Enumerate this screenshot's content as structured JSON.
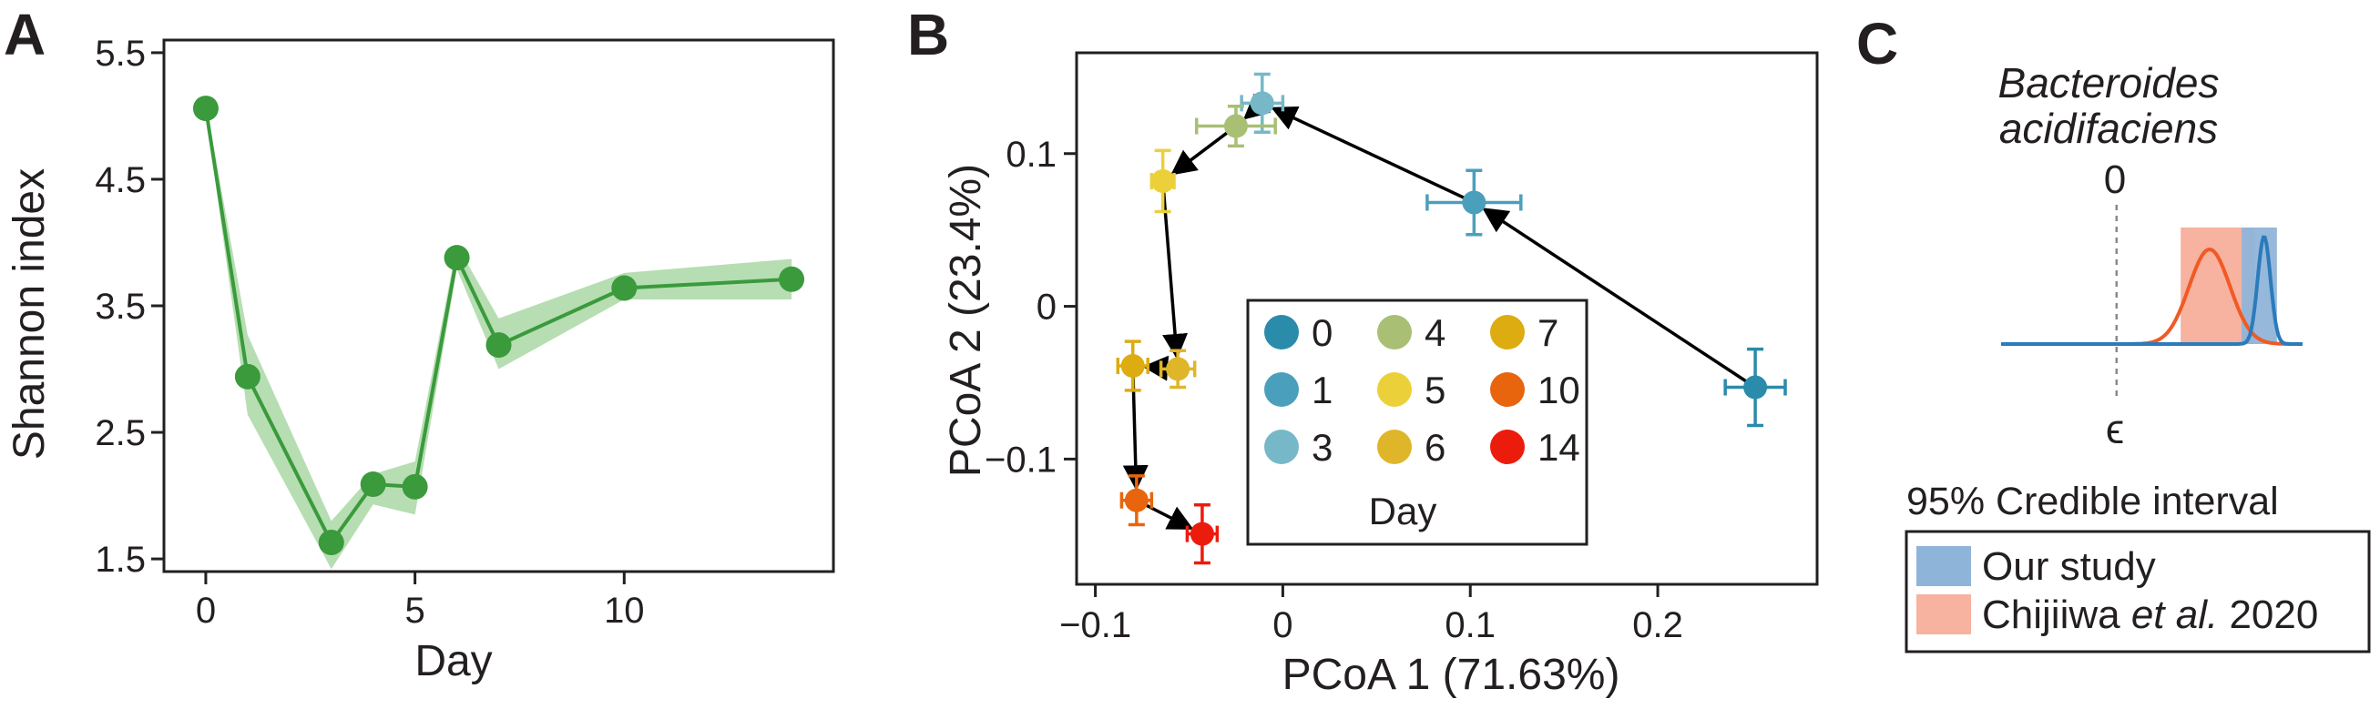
{
  "panels": {
    "a": "A",
    "b": "B",
    "c": "C"
  },
  "colors": {
    "shannon_line": "#3a9a3c",
    "shannon_band": "#a9d8a4",
    "arrow": "#000000",
    "prior_line": "#f15a24",
    "prior_band": "#f7b2a0",
    "study_line": "#2b7bba",
    "study_band": "#8fb4d9",
    "day_colors": {
      "0": "#2b8bab",
      "1": "#4aa0bc",
      "3": "#76b8c8",
      "4": "#a8bf74",
      "5": "#ecd03a",
      "6": "#dfb62a",
      "7": "#dcac10",
      "10": "#e8650e",
      "14": "#ec1c0c"
    }
  },
  "chart_data": [
    {
      "type": "line",
      "panel": "A",
      "xlabel": "Day",
      "ylabel": "Shannon index",
      "xlim": [
        -1,
        15
      ],
      "ylim": [
        1.4,
        5.6
      ],
      "xticks": [
        0,
        5,
        10
      ],
      "yticks": [
        1.5,
        2.5,
        3.5,
        4.5,
        5.5
      ],
      "yticklabels": [
        "1.5",
        "2.5",
        "3.5",
        "4.5",
        "5.5"
      ],
      "series": [
        {
          "x": [
            0,
            1,
            3,
            4,
            5,
            6,
            7,
            10,
            14
          ],
          "y": [
            5.06,
            2.94,
            1.63,
            2.09,
            2.07,
            3.88,
            3.19,
            3.64,
            3.71
          ],
          "lower": [
            5.02,
            2.64,
            1.42,
            1.93,
            1.85,
            3.79,
            3.0,
            3.55,
            3.55
          ],
          "upper": [
            5.1,
            3.27,
            1.8,
            2.17,
            2.27,
            3.98,
            3.4,
            3.76,
            3.87
          ]
        }
      ]
    },
    {
      "type": "scatter",
      "panel": "B",
      "xlabel": "PCoA 1 (71.63%)",
      "ylabel": "PCoA 2 (23.4%)",
      "xlim": [
        -0.11,
        0.285
      ],
      "ylim": [
        -0.182,
        0.166
      ],
      "xticks": [
        -0.1,
        0,
        0.1,
        0.2
      ],
      "xticklabels": [
        "−0.1",
        "0",
        "0.1",
        "0.2"
      ],
      "yticks": [
        -0.1,
        0,
        0.1
      ],
      "yticklabels": [
        "−0.1",
        "0",
        "0.1"
      ],
      "legend_title": "Day",
      "legend_position": "bottom-center",
      "points": [
        {
          "day": "0",
          "x": 0.252,
          "y": -0.053,
          "xerr": 0.016,
          "yerr": 0.025
        },
        {
          "day": "1",
          "x": 0.102,
          "y": 0.068,
          "xerr": 0.025,
          "yerr": 0.021
        },
        {
          "day": "3",
          "x": -0.011,
          "y": 0.133,
          "xerr": 0.011,
          "yerr": 0.019
        },
        {
          "day": "4",
          "x": -0.025,
          "y": 0.118,
          "xerr": 0.021,
          "yerr": 0.013
        },
        {
          "day": "5",
          "x": -0.064,
          "y": 0.082,
          "xerr": 0.006,
          "yerr": 0.02
        },
        {
          "day": "6",
          "x": -0.056,
          "y": -0.041,
          "xerr": 0.009,
          "yerr": 0.012
        },
        {
          "day": "7",
          "x": -0.08,
          "y": -0.039,
          "xerr": 0.008,
          "yerr": 0.016
        },
        {
          "day": "10",
          "x": -0.078,
          "y": -0.127,
          "xerr": 0.008,
          "yerr": 0.016
        },
        {
          "day": "14",
          "x": -0.043,
          "y": -0.149,
          "xerr": 0.008,
          "yerr": 0.019
        }
      ],
      "path_order": [
        "0",
        "1",
        "3",
        "4",
        "5",
        "6",
        "7",
        "10",
        "14"
      ],
      "legend_order": [
        "0",
        "4",
        "7",
        "1",
        "5",
        "10",
        "3",
        "6",
        "14"
      ]
    },
    {
      "type": "area",
      "panel": "C",
      "title_line1": "Bacteroides",
      "title_line2": "acidifaciens",
      "top_label": "0",
      "bottom_label": "ϵ",
      "caption": "95% Credible interval",
      "xlim": [
        -1.8,
        2.9
      ],
      "zero_at": 0,
      "prior": {
        "name": "Chijiiwa et al. 2020",
        "mean": 1.45,
        "sd": 0.32,
        "ci": [
          1.0,
          2.15
        ]
      },
      "posterior": {
        "name": "Our study",
        "mean": 2.3,
        "sd": 0.1,
        "ci": [
          1.95,
          2.5
        ]
      },
      "legend": [
        {
          "key": "study",
          "parts": [
            {
              "text": "Our study",
              "italic": false
            }
          ]
        },
        {
          "key": "prior",
          "parts": [
            {
              "text": "Chijiiwa ",
              "italic": false
            },
            {
              "text": "et al.",
              "italic": true
            },
            {
              "text": " 2020",
              "italic": false
            }
          ]
        }
      ]
    }
  ]
}
